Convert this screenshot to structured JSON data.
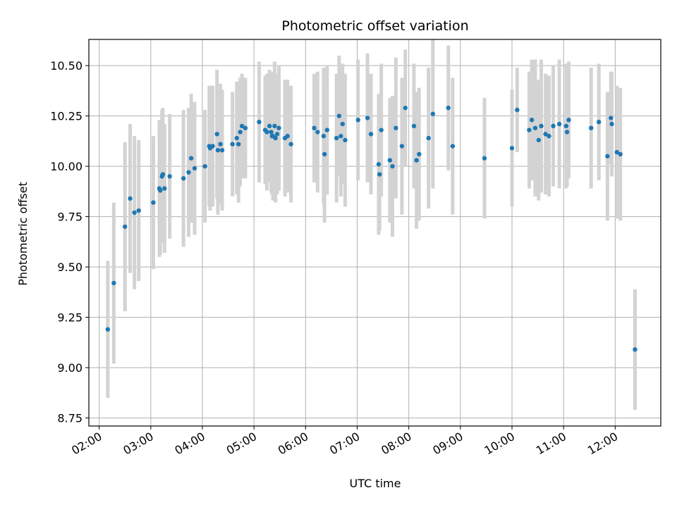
{
  "chart_data": {
    "type": "scatter",
    "title": "Photometric offset variation",
    "xlabel": "UTC time",
    "ylabel": "Photometric offset",
    "xlim": [
      "01:48",
      "12:53"
    ],
    "ylim": [
      8.71,
      10.63
    ],
    "grid": true,
    "x_ticks": [
      "02:00",
      "03:00",
      "04:00",
      "05:00",
      "06:00",
      "07:00",
      "08:00",
      "09:00",
      "10:00",
      "11:00",
      "12:00"
    ],
    "y_ticks": [
      "8.75",
      "9.00",
      "9.25",
      "9.50",
      "9.75",
      "10.00",
      "10.25",
      "10.50"
    ],
    "colors": {
      "point": "#1f77b4",
      "errorbar": "#d3d3d3",
      "grid": "#b0b0b0"
    },
    "series": [
      {
        "x": [
          "02:10",
          "02:17",
          "02:30",
          "02:36",
          "02:41",
          "02:46",
          "03:03",
          "03:10",
          "03:11",
          "03:13",
          "03:14",
          "03:16",
          "03:22",
          "03:38",
          "03:44",
          "03:47",
          "03:51",
          "04:03",
          "04:08",
          "04:09",
          "04:12",
          "04:17",
          "04:18",
          "04:21",
          "04:23",
          "04:35",
          "04:40",
          "04:42",
          "04:44",
          "04:46",
          "04:50",
          "05:06",
          "05:13",
          "05:15",
          "05:18",
          "05:20",
          "05:21",
          "05:22",
          "05:24",
          "05:25",
          "05:27",
          "05:29",
          "05:36",
          "05:39",
          "05:43",
          "06:10",
          "06:14",
          "06:21",
          "06:22",
          "06:25",
          "06:36",
          "06:39",
          "06:41",
          "06:43",
          "06:46",
          "07:01",
          "07:12",
          "07:16",
          "07:25",
          "07:26",
          "07:28",
          "07:38",
          "07:41",
          "07:45",
          "07:52",
          "07:56",
          "08:06",
          "08:09",
          "08:12",
          "08:23",
          "08:28",
          "08:46",
          "08:51",
          "09:28",
          "10:00",
          "10:06",
          "10:20",
          "10:23",
          "10:27",
          "10:31",
          "10:34",
          "10:39",
          "10:43",
          "10:48",
          "10:55",
          "11:03",
          "11:04",
          "11:06",
          "11:32",
          "11:41",
          "11:51",
          "11:55",
          "11:56",
          "12:02",
          "12:06",
          "12:23"
        ],
        "y": [
          9.19,
          9.42,
          9.7,
          9.84,
          9.77,
          9.78,
          9.82,
          9.89,
          9.88,
          9.95,
          9.96,
          9.89,
          9.95,
          9.94,
          9.97,
          10.04,
          9.99,
          10.0,
          10.1,
          10.09,
          10.1,
          10.16,
          10.08,
          10.11,
          10.08,
          10.11,
          10.14,
          10.11,
          10.17,
          10.2,
          10.19,
          10.22,
          10.18,
          10.17,
          10.2,
          10.17,
          10.15,
          10.15,
          10.2,
          10.14,
          10.16,
          10.19,
          10.14,
          10.15,
          10.11,
          10.19,
          10.17,
          10.15,
          10.06,
          10.18,
          10.14,
          10.25,
          10.15,
          10.21,
          10.13,
          10.23,
          10.24,
          10.16,
          10.01,
          9.96,
          10.18,
          10.03,
          10.0,
          10.19,
          10.1,
          10.29,
          10.2,
          10.03,
          10.06,
          10.14,
          10.26,
          10.29,
          10.1,
          10.04,
          10.09,
          10.28,
          10.18,
          10.23,
          10.19,
          10.13,
          10.2,
          10.16,
          10.15,
          10.2,
          10.21,
          10.2,
          10.17,
          10.23,
          10.19,
          10.22,
          10.05,
          10.24,
          10.21,
          10.07,
          10.06,
          9.09
        ],
        "yerr": [
          0.34,
          0.4,
          0.42,
          0.37,
          0.38,
          0.35,
          0.33,
          0.34,
          0.32,
          0.33,
          0.33,
          0.32,
          0.31,
          0.34,
          0.32,
          0.32,
          0.33,
          0.28,
          0.3,
          0.31,
          0.3,
          0.32,
          0.32,
          0.3,
          0.3,
          0.26,
          0.28,
          0.29,
          0.27,
          0.26,
          0.25,
          0.3,
          0.27,
          0.29,
          0.28,
          0.3,
          0.29,
          0.32,
          0.32,
          0.32,
          0.3,
          0.31,
          0.29,
          0.28,
          0.29,
          0.27,
          0.3,
          0.34,
          0.34,
          0.32,
          0.32,
          0.3,
          0.3,
          0.3,
          0.33,
          0.3,
          0.32,
          0.3,
          0.35,
          0.28,
          0.33,
          0.31,
          0.35,
          0.35,
          0.34,
          0.29,
          0.31,
          0.34,
          0.33,
          0.35,
          0.37,
          0.31,
          0.34,
          0.3,
          0.29,
          0.21,
          0.29,
          0.3,
          0.34,
          0.3,
          0.33,
          0.3,
          0.3,
          0.3,
          0.32,
          0.31,
          0.27,
          0.29,
          0.3,
          0.29,
          0.32,
          0.23,
          0.26,
          0.33,
          0.33,
          0.3
        ]
      }
    ]
  }
}
